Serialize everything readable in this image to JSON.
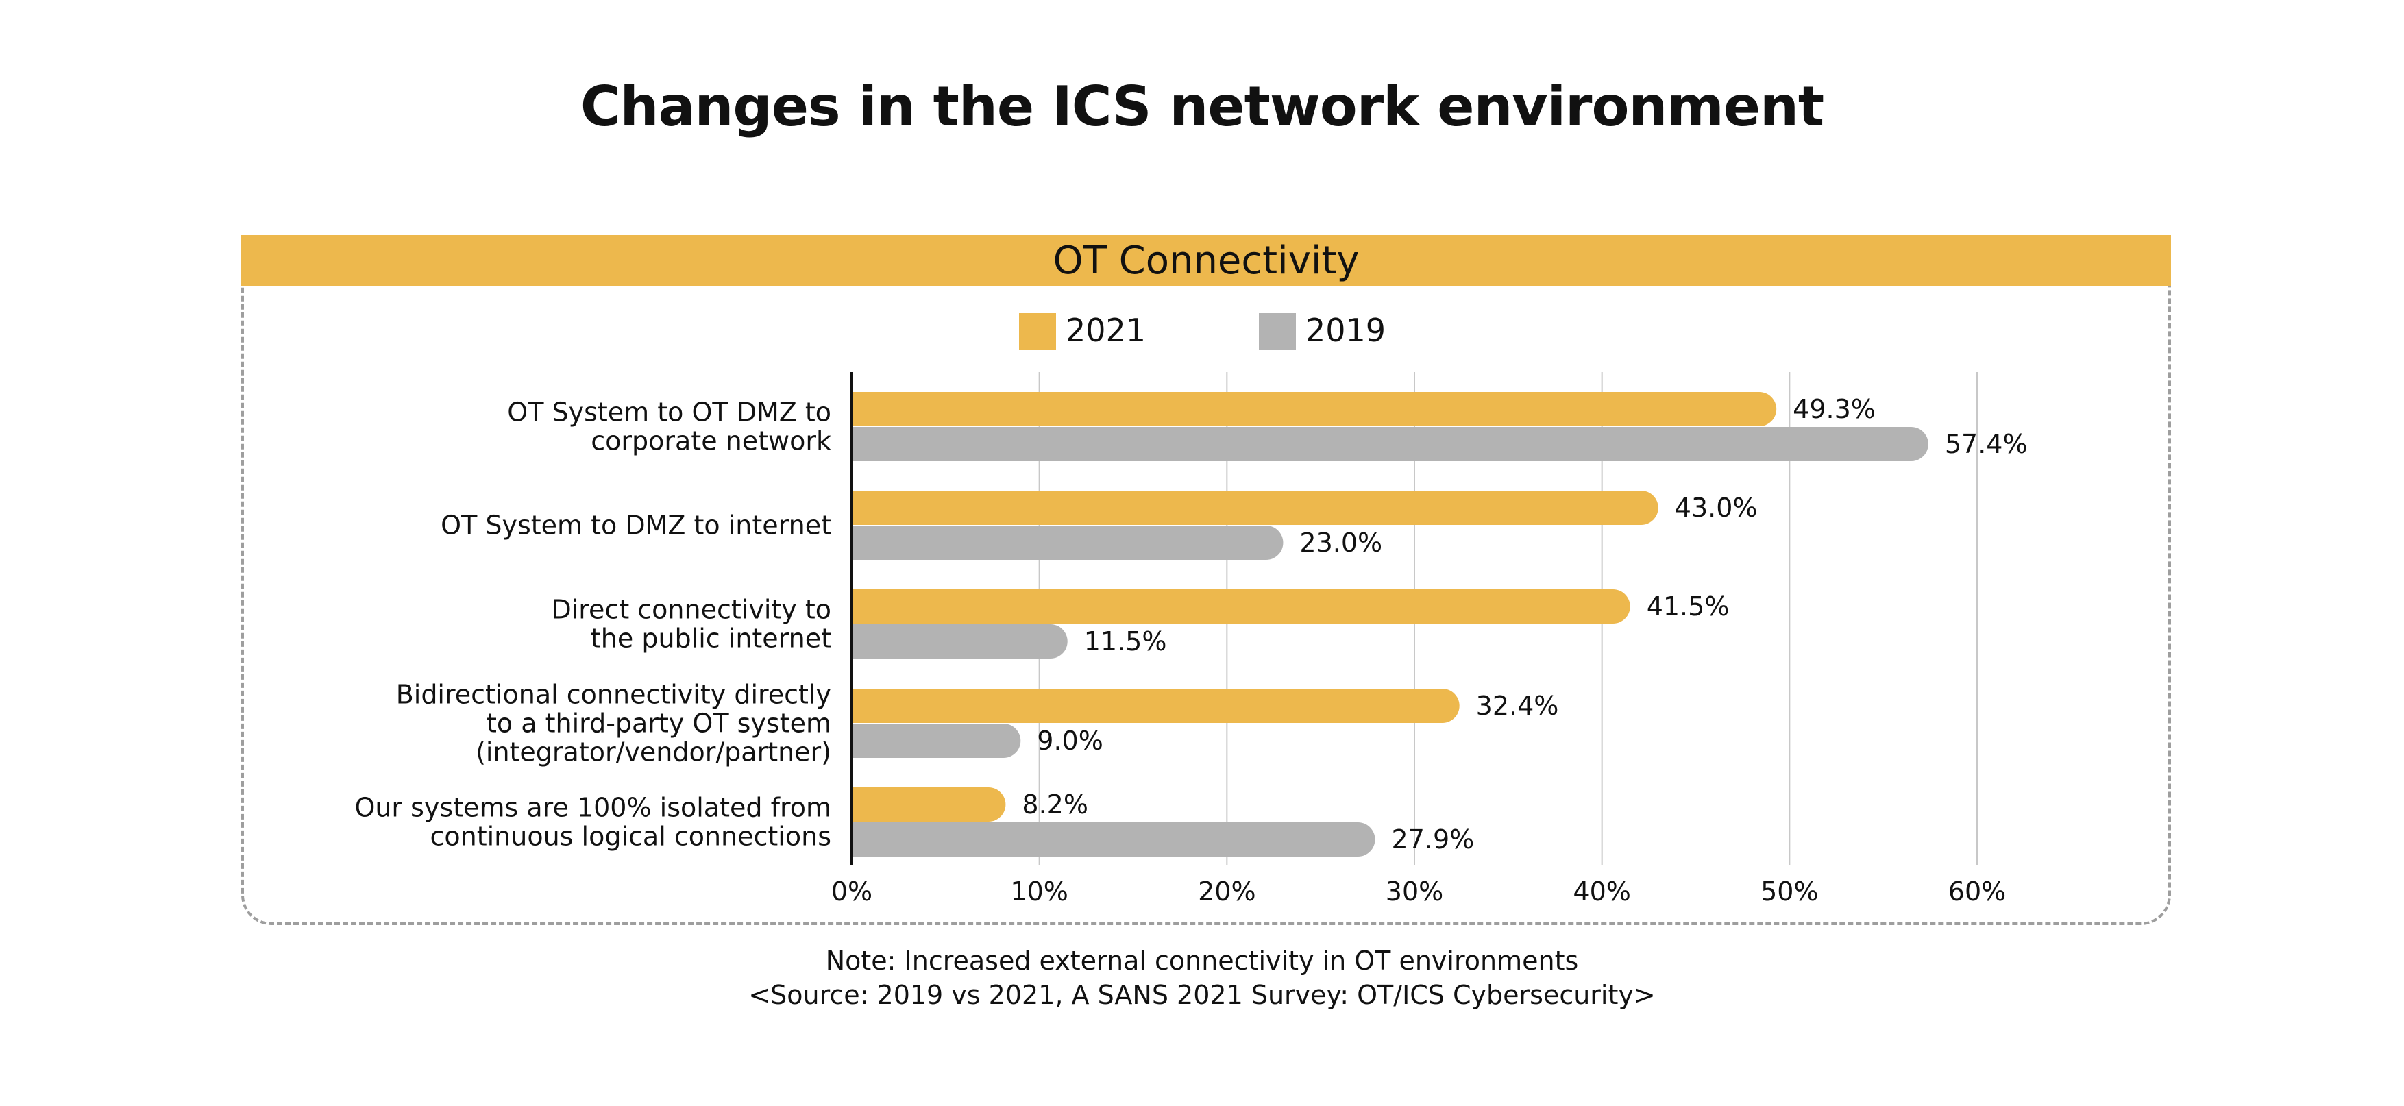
{
  "title": "Changes in the ICS network environment",
  "panel_title": "OT Connectivity",
  "note": "Note: Increased external connectivity in OT environments",
  "source": "<Source: 2019 vs 2021, A SANS 2021 Survey: OT/ICS Cybersecurity>",
  "colors": {
    "series_2021": "#EDB84D",
    "series_2019": "#B3B3B3",
    "gridline": "#c8c8c8",
    "axis": "#111111"
  },
  "chart_data": {
    "type": "bar",
    "orientation": "horizontal",
    "title": "OT Connectivity",
    "categories": [
      [
        "OT System to OT DMZ to",
        "corporate network"
      ],
      [
        "OT System to DMZ to internet"
      ],
      [
        "Direct connectivity to",
        "the public internet"
      ],
      [
        "Bidirectional connectivity directly",
        "to a third-party OT system",
        "(integrator/vendor/partner)"
      ],
      [
        "Our systems are 100% isolated from",
        "continuous logical connections"
      ]
    ],
    "series": [
      {
        "name": "2021",
        "values": [
          49.3,
          43.0,
          41.5,
          32.4,
          8.2
        ],
        "labels": [
          "49.3%",
          "43.0%",
          "41.5%",
          "32.4%",
          "8.2%"
        ]
      },
      {
        "name": "2019",
        "values": [
          57.4,
          23.0,
          11.5,
          9.0,
          27.9
        ],
        "labels": [
          "57.4%",
          "23.0%",
          "11.5%",
          "9.0%",
          "27.9%"
        ]
      }
    ],
    "xlim": [
      0,
      60
    ],
    "xticks": [
      0,
      10,
      20,
      30,
      40,
      50,
      60
    ],
    "xtick_labels": [
      "0%",
      "10%",
      "20%",
      "30%",
      "40%",
      "50%",
      "60%"
    ],
    "grid": true,
    "legend_position": "top-center"
  }
}
